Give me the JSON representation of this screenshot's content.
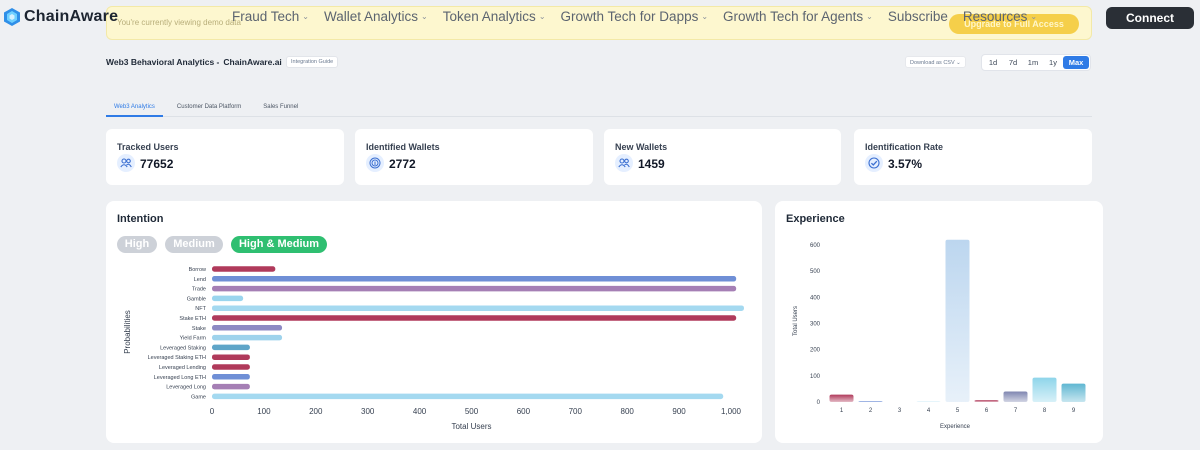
{
  "banner": {
    "text": "You're currently viewing demo data",
    "button_label": "Upgrade to Full Access"
  },
  "nav": {
    "brand": "ChainAware",
    "menu": [
      {
        "label": "Fraud Tech",
        "has_dropdown": true
      },
      {
        "label": "Wallet Analytics",
        "has_dropdown": true
      },
      {
        "label": "Token Analytics",
        "has_dropdown": true
      },
      {
        "label": "Growth Tech for Dapps",
        "has_dropdown": true
      },
      {
        "label": "Growth Tech for Agents",
        "has_dropdown": true
      },
      {
        "label": "Subscribe",
        "has_dropdown": false
      },
      {
        "label": "Resources",
        "has_dropdown": true
      }
    ],
    "connect_label": "Connect"
  },
  "header": {
    "title": "Web3 Behavioral Analytics -",
    "brand": "ChainAware.ai",
    "guide_label": "Integration Guide",
    "csv_label": "Download as CSV",
    "ranges": [
      "1d",
      "7d",
      "1m",
      "1y",
      "Max"
    ],
    "active_range": "Max"
  },
  "tabs": [
    {
      "label": "Web3 Analytics",
      "active": true
    },
    {
      "label": "Customer Data Platform",
      "active": false
    },
    {
      "label": "Sales Funnel",
      "active": false
    }
  ],
  "stats": [
    {
      "label": "Tracked Users",
      "value": "77652",
      "icon": "users-icon"
    },
    {
      "label": "Identified Wallets",
      "value": "2772",
      "icon": "fingerprint-icon"
    },
    {
      "label": "New Wallets",
      "value": "1459",
      "icon": "users-icon"
    },
    {
      "label": "Identification Rate",
      "value": "3.57%",
      "icon": "check-badge-icon"
    }
  ],
  "intention": {
    "title": "Intention",
    "filters": [
      {
        "label": "High",
        "active": false
      },
      {
        "label": "Medium",
        "active": false
      },
      {
        "label": "High & Medium",
        "active": true
      }
    ]
  },
  "experience": {
    "title": "Experience"
  },
  "colors": {
    "accent": "#2f7be6",
    "active_pill": "#2fbf71",
    "inactive_pill": "#cdd1d8"
  },
  "chart_data": [
    {
      "type": "bar",
      "orientation": "horizontal",
      "title": "Intention",
      "categories": [
        "Borrow",
        "Lend",
        "Trade",
        "Gamble",
        "NFT",
        "Stake ETH",
        "Stake",
        "Yield Farm",
        "Leveraged Staking",
        "Leveraged Staking ETH",
        "Leveraged Lending",
        "Leveraged Long ETH",
        "Leveraged Long",
        "Game"
      ],
      "values": [
        122,
        1010,
        1010,
        60,
        1025,
        1010,
        135,
        135,
        73,
        73,
        73,
        73,
        73,
        985
      ],
      "colors": [
        "#b03a5b",
        "#6f8fd6",
        "#a57fb5",
        "#9ad5ee",
        "#a4d9f0",
        "#b03a5b",
        "#8d8ac4",
        "#9ed3ec",
        "#5fa5c8",
        "#b03a5b",
        "#b03a5b",
        "#6f8fd6",
        "#a57fb5",
        "#a4d9f0"
      ],
      "xlabel": "Total Users",
      "ylabel": "Probabilities",
      "xticks": [
        "0",
        "100",
        "200",
        "300",
        "400",
        "500",
        "600",
        "700",
        "800",
        "900",
        "1,000"
      ],
      "xlim": [
        0,
        1000
      ]
    },
    {
      "type": "bar",
      "title": "Experience",
      "categories": [
        "1",
        "2",
        "3",
        "4",
        "5",
        "6",
        "7",
        "8",
        "9"
      ],
      "values": [
        28,
        4,
        0,
        1,
        620,
        7,
        40,
        93,
        70
      ],
      "colors": [
        "#b03a5b",
        "#6f8fd6",
        "#a57fb5",
        "#9ad5ee",
        "#bcd6ef",
        "#b03a5b",
        "#7f86b0",
        "#8fd5ea",
        "#5fb7d2"
      ],
      "xlabel": "Experience",
      "ylabel": "Total Users",
      "yticks": [
        "0",
        "100",
        "200",
        "300",
        "400",
        "500",
        "600"
      ],
      "ylim": [
        0,
        600
      ]
    }
  ]
}
